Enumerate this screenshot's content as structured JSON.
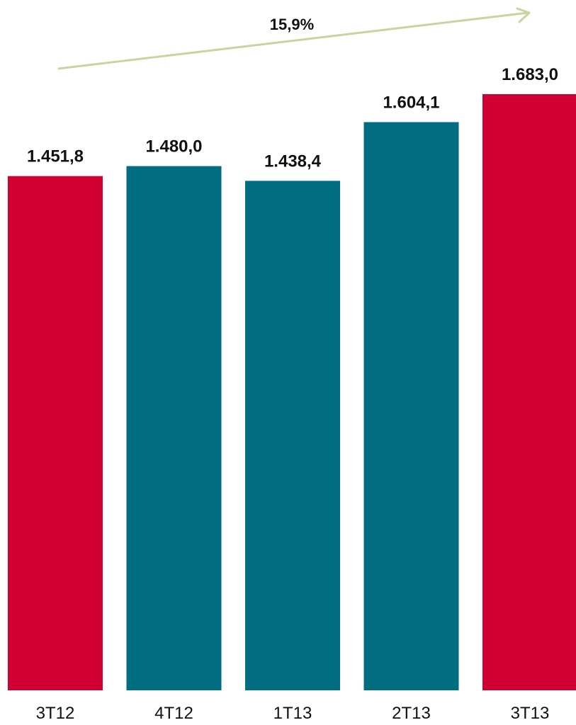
{
  "chart_data": {
    "type": "bar",
    "categories": [
      "3T12",
      "4T12",
      "1T13",
      "2T13",
      "3T13"
    ],
    "values": [
      1451.8,
      1480.0,
      1438.4,
      1604.1,
      1683.0
    ],
    "value_labels": [
      "1.451,8",
      "1.480,0",
      "1.438,4",
      "1.604,1",
      "1.683,0"
    ],
    "bar_colors": [
      "#d10033",
      "#006e80",
      "#006e80",
      "#006e80",
      "#d10033"
    ],
    "title": "",
    "xlabel": "",
    "ylabel": "",
    "ylim": [
      0,
      1683.0
    ],
    "grid": false,
    "legend": "none",
    "trend": {
      "label": "15,9%",
      "color": "#ccd3a1",
      "from_category": "3T12",
      "to_category": "3T13"
    }
  }
}
